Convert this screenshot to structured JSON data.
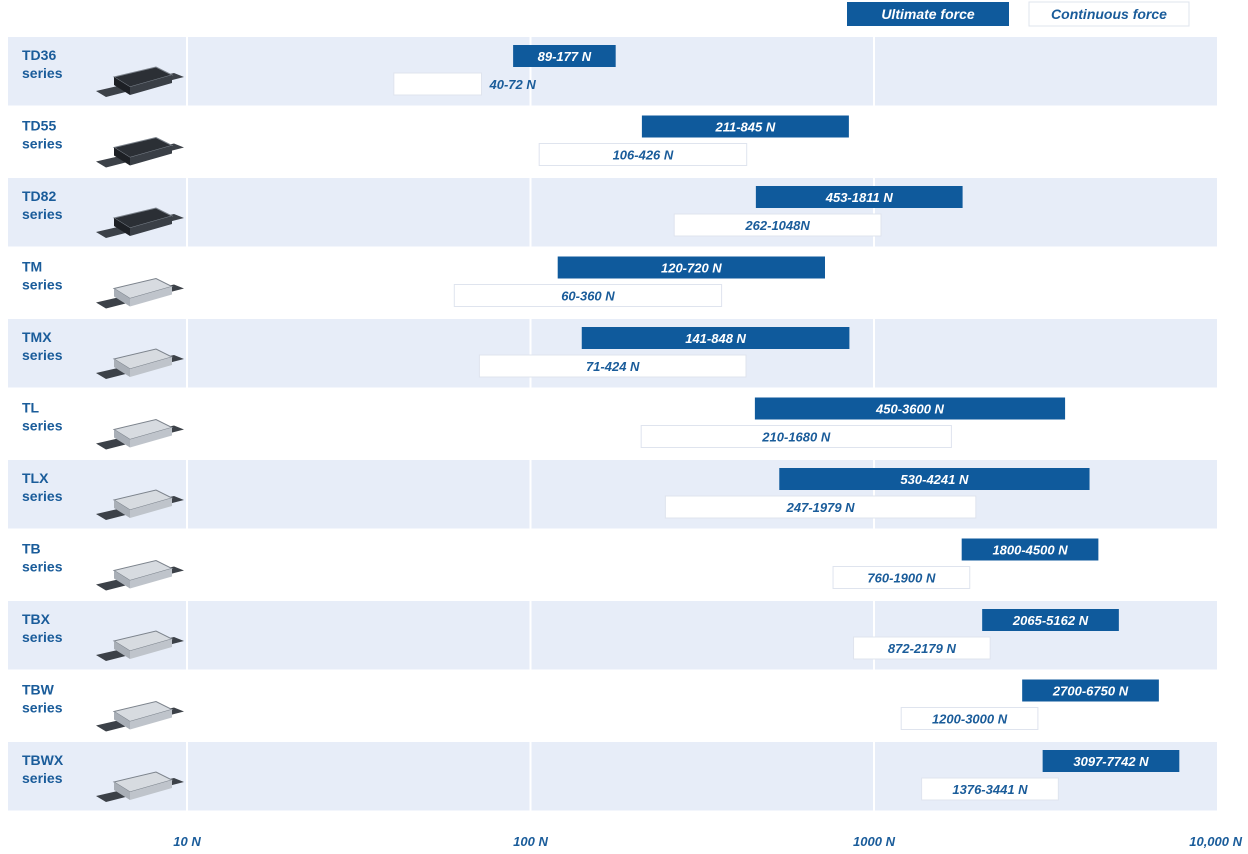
{
  "chart_data": {
    "type": "bar",
    "orientation": "horizontal",
    "x_scale": "log",
    "xlim": [
      3,
      10000
    ],
    "x_ticks": [
      {
        "value": 10,
        "label": "10 N"
      },
      {
        "value": 100,
        "label": "100 N"
      },
      {
        "value": 1000,
        "label": "1000 N"
      },
      {
        "value": 10000,
        "label": "10,000 N"
      }
    ],
    "grid": true,
    "legend": {
      "placement": "top-right",
      "items": [
        {
          "name": "Ultimate force",
          "style": "filled"
        },
        {
          "name": "Continuous force",
          "style": "outlined"
        }
      ]
    },
    "colors": {
      "ultimate": "#0f5a9c",
      "row_band": "#e7edf8",
      "text": "#1a5c9a",
      "outline": "#dfe4ee"
    },
    "series_names": [
      "Ultimate force",
      "Continuous force"
    ],
    "categories": [
      {
        "name": "TD36",
        "sub": "series",
        "ultimate": {
          "min": 89,
          "max": 177,
          "label": "89-177 N"
        },
        "continuous": {
          "min": 40,
          "max": 72,
          "label": "40-72 N"
        }
      },
      {
        "name": "TD55",
        "sub": "series",
        "ultimate": {
          "min": 211,
          "max": 845,
          "label": "211-845 N"
        },
        "continuous": {
          "min": 106,
          "max": 426,
          "label": "106-426 N"
        }
      },
      {
        "name": "TD82",
        "sub": "series",
        "ultimate": {
          "min": 453,
          "max": 1811,
          "label": "453-1811 N"
        },
        "continuous": {
          "min": 262,
          "max": 1048,
          "label": "262-1048N"
        }
      },
      {
        "name": "TM",
        "sub": "series",
        "ultimate": {
          "min": 120,
          "max": 720,
          "label": "120-720 N"
        },
        "continuous": {
          "min": 60,
          "max": 360,
          "label": "60-360 N"
        }
      },
      {
        "name": "TMX",
        "sub": "series",
        "ultimate": {
          "min": 141,
          "max": 848,
          "label": "141-848 N"
        },
        "continuous": {
          "min": 71,
          "max": 424,
          "label": "71-424 N"
        }
      },
      {
        "name": "TL",
        "sub": "series",
        "ultimate": {
          "min": 450,
          "max": 3600,
          "label": "450-3600 N"
        },
        "continuous": {
          "min": 210,
          "max": 1680,
          "label": "210-1680 N"
        }
      },
      {
        "name": "TLX",
        "sub": "series",
        "ultimate": {
          "min": 530,
          "max": 4241,
          "label": "530-4241 N"
        },
        "continuous": {
          "min": 247,
          "max": 1979,
          "label": "247-1979 N"
        }
      },
      {
        "name": "TB",
        "sub": "series",
        "ultimate": {
          "min": 1800,
          "max": 4500,
          "label": "1800-4500 N"
        },
        "continuous": {
          "min": 760,
          "max": 1900,
          "label": "760-1900 N"
        }
      },
      {
        "name": "TBX",
        "sub": "series",
        "ultimate": {
          "min": 2065,
          "max": 5162,
          "label": "2065-5162 N"
        },
        "continuous": {
          "min": 872,
          "max": 2179,
          "label": "872-2179 N"
        }
      },
      {
        "name": "TBW",
        "sub": "series",
        "ultimate": {
          "min": 2700,
          "max": 6750,
          "label": "2700-6750 N"
        },
        "continuous": {
          "min": 1200,
          "max": 3000,
          "label": "1200-3000 N"
        }
      },
      {
        "name": "TBWX",
        "sub": "series",
        "ultimate": {
          "min": 3097,
          "max": 7742,
          "label": "3097-7742 N"
        },
        "continuous": {
          "min": 1376,
          "max": 3441,
          "label": "1376-3441 N"
        }
      }
    ]
  }
}
